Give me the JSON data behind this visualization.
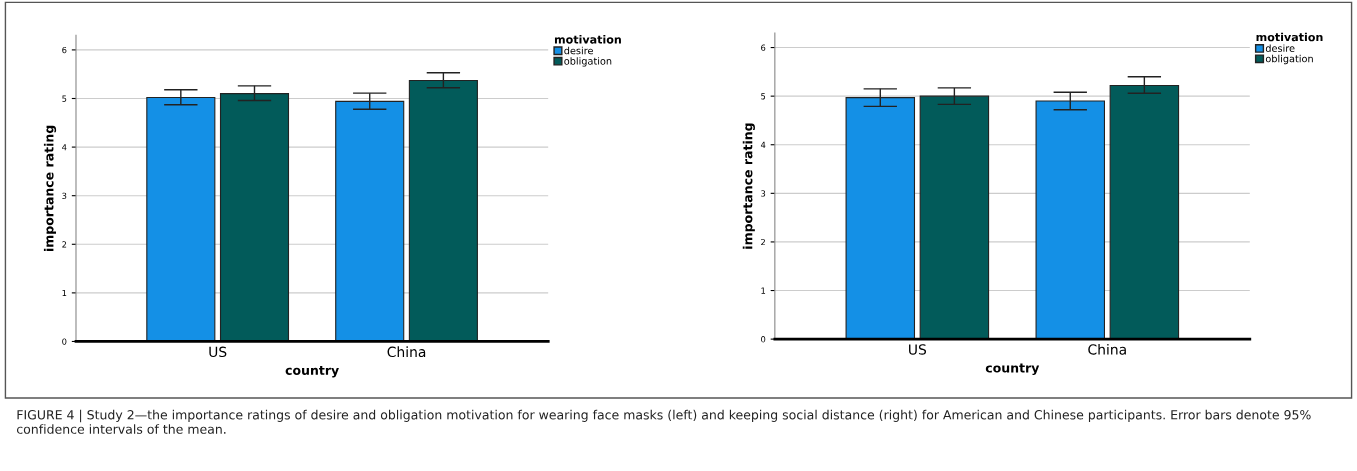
{
  "chart_data": [
    {
      "type": "bar",
      "xlabel": "country",
      "ylabel": "importance rating",
      "legend_title": "motivation",
      "categories": [
        "US",
        "China"
      ],
      "series": [
        {
          "name": "desire",
          "color": "#1490e6",
          "values": [
            5.02,
            4.94
          ],
          "errors": [
            [
              4.87,
              5.18
            ],
            [
              4.78,
              5.11
            ]
          ]
        },
        {
          "name": "obligation",
          "color": "#025b5a",
          "values": [
            5.1,
            5.37
          ],
          "errors": [
            [
              4.96,
              5.26
            ],
            [
              5.22,
              5.53
            ]
          ]
        }
      ],
      "ylim": [
        0,
        6.3
      ],
      "yticks": [
        0,
        1,
        2,
        3,
        4,
        5,
        6
      ],
      "grid": "y",
      "legend": "top right"
    },
    {
      "type": "bar",
      "xlabel": "country",
      "ylabel": "importance rating",
      "legend_title": "motivation",
      "categories": [
        "US",
        "China"
      ],
      "series": [
        {
          "name": "desire",
          "color": "#1490e6",
          "values": [
            4.97,
            4.9
          ],
          "errors": [
            [
              4.79,
              5.15
            ],
            [
              4.72,
              5.08
            ]
          ]
        },
        {
          "name": "obligation",
          "color": "#025b5a",
          "values": [
            5.0,
            5.22
          ],
          "errors": [
            [
              4.83,
              5.17
            ],
            [
              5.06,
              5.4
            ]
          ]
        }
      ],
      "ylim": [
        0,
        6.3
      ],
      "yticks": [
        0,
        1,
        2,
        3,
        4,
        5,
        6
      ],
      "grid": "y",
      "legend": "top right",
      "annotations": [
        "FIGURE 4 | Study 2—the importance ratings of desire and obligation motivation for wearing face masks (left) and keeping social distance (right) for American and Chinese participants. Error bars denote 95% confidence intervals of the mean."
      ]
    }
  ]
}
